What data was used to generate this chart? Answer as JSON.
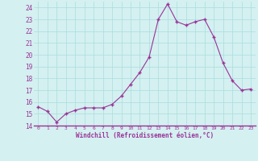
{
  "hours": [
    0,
    1,
    2,
    3,
    4,
    5,
    6,
    7,
    8,
    9,
    10,
    11,
    12,
    13,
    14,
    15,
    16,
    17,
    18,
    19,
    20,
    21,
    22,
    23
  ],
  "temps": [
    15.6,
    15.2,
    14.3,
    15.0,
    15.3,
    15.5,
    15.5,
    15.5,
    15.8,
    16.5,
    17.5,
    18.5,
    19.8,
    23.0,
    24.3,
    22.8,
    22.5,
    22.8,
    23.0,
    21.5,
    19.3,
    17.8,
    17.0,
    17.1
  ],
  "line_color": "#993399",
  "bg_color": "#d4f0f0",
  "grid_color": "#aadddd",
  "xlabel": "Windchill (Refroidissement éolien,°C)",
  "ylim": [
    14,
    24.5
  ],
  "xlim": [
    -0.5,
    23.5
  ],
  "yticks": [
    14,
    15,
    16,
    17,
    18,
    19,
    20,
    21,
    22,
    23,
    24
  ],
  "xticks": [
    0,
    1,
    2,
    3,
    4,
    5,
    6,
    7,
    8,
    9,
    10,
    11,
    12,
    13,
    14,
    15,
    16,
    17,
    18,
    19,
    20,
    21,
    22,
    23
  ],
  "spine_color": "#993399",
  "tick_color": "#993399"
}
